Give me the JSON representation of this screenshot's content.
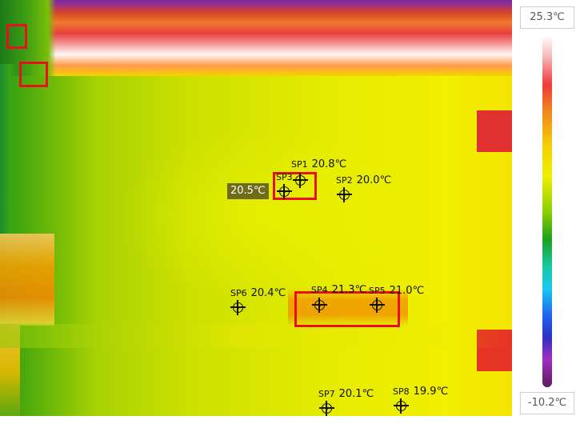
{
  "scale": {
    "max_label": "25.3℃",
    "min_label": "-10.2℃"
  },
  "cursor": {
    "temperature": "20.5℃"
  },
  "spots": [
    {
      "name": "SP1",
      "temp": "20.8℃"
    },
    {
      "name": "SP2",
      "temp": "20.0℃"
    },
    {
      "name": "SP3",
      "temp": ""
    },
    {
      "name": "SP4",
      "temp": "21.3℃"
    },
    {
      "name": "SP5",
      "temp": "21.0℃"
    },
    {
      "name": "SP6",
      "temp": "20.4℃"
    },
    {
      "name": "SP7",
      "temp": "20.1℃"
    },
    {
      "name": "SP8",
      "temp": "19.9℃"
    }
  ],
  "colors": {
    "selection_box": "#e8101e",
    "cursor_badge": "#6e6c1a"
  },
  "icons": {
    "spot_marker": "crosshair-icon"
  }
}
